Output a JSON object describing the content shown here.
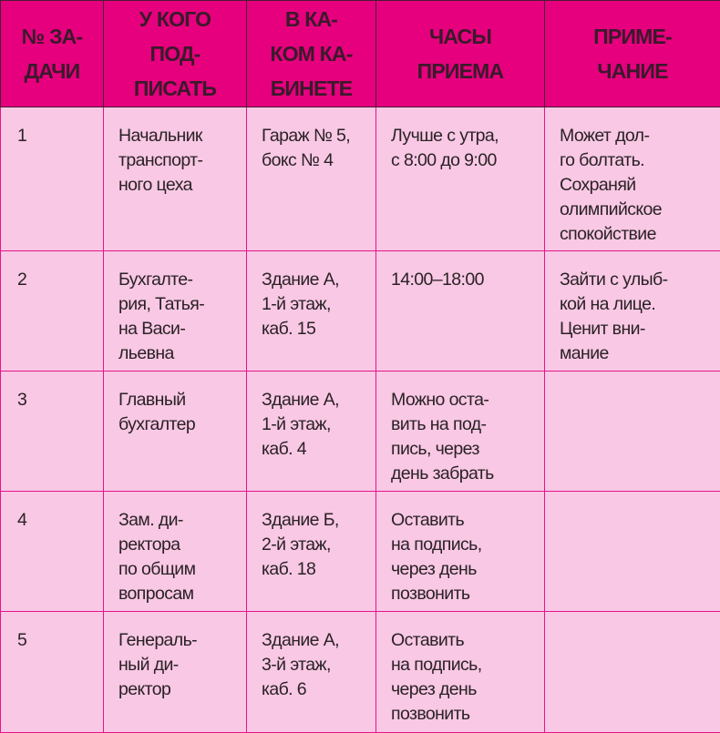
{
  "table": {
    "headers": [
      "№ ЗА-\nДАЧИ",
      "У КОГО\nПОД-\nПИСАТЬ",
      "В КА-\nКОМ КА-\nБИНЕТЕ",
      "ЧАСЫ\nПРИЕМА",
      "ПРИМЕ-\nЧАНИЕ"
    ],
    "rows": [
      [
        "1",
        "Начальник\nтранспорт-\nного цеха",
        "Гараж № 5,\nбокс № 4",
        "Лучше с утра,\nс 8:00 до 9:00",
        "Может дол-\nго болтать.\nСохраняй\nолимпийское\nспокойствие"
      ],
      [
        "2",
        "Бухгалте-\nрия, Татья-\nна Васи-\nльевна",
        "Здание А,\n1-й этаж,\nкаб. 15",
        "14:00–18:00",
        "Зайти с улыб-\nкой на лице.\nЦенит вни-\nмание"
      ],
      [
        "3",
        "Главный\nбухгалтер",
        "Здание А,\n1-й этаж,\nкаб. 4",
        "Можно оста-\nвить на под-\nпись, через\nдень забрать",
        ""
      ],
      [
        "4",
        "Зам. ди-\nректора\nпо общим\nвопросам",
        "Здание Б,\n2-й этаж,\nкаб. 18",
        "Оставить\nна подпись,\nчерез день\nпозвонить",
        ""
      ],
      [
        "5",
        "Генераль-\nный ди-\nректор",
        "Здание А,\n3-й этаж,\nкаб. 6",
        "Оставить\nна подпись,\nчерез день\nпозвонить",
        ""
      ]
    ]
  },
  "colors": {
    "header_bg": "#e6007e",
    "body_bg": "#f9c8e4",
    "grid": "#e4168a"
  }
}
